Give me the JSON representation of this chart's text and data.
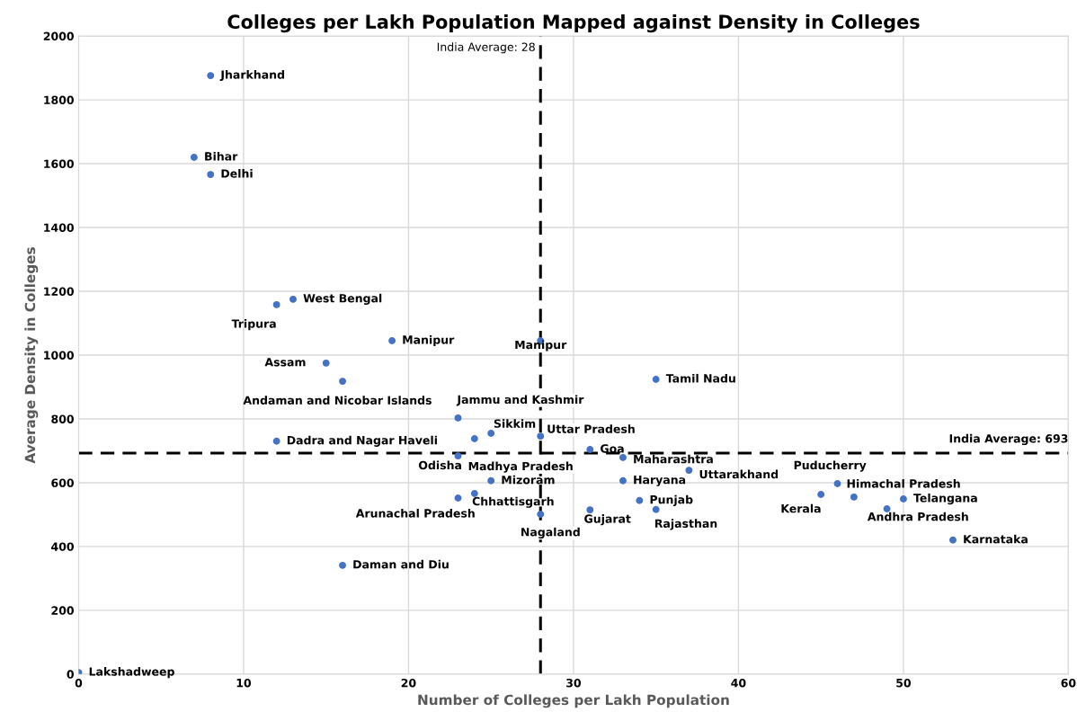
{
  "chart_data": {
    "type": "scatter",
    "title": "Colleges per Lakh Population Mapped against Density in Colleges",
    "xlabel": "Number of Colleges per Lakh Population",
    "ylabel": "Average Density in Colleges",
    "x": [
      8,
      7,
      8,
      12,
      13,
      19,
      28,
      15,
      16,
      23,
      24,
      25,
      12,
      28,
      23,
      25,
      24,
      23,
      28,
      31,
      31,
      33,
      33,
      35,
      34,
      35,
      37,
      45,
      46,
      47,
      50,
      49,
      53,
      16,
      0
    ],
    "series": [
      {
        "color": "#4472c4",
        "values": [
          1876,
          1620,
          1566,
          1158,
          1175,
          1045,
          1045,
          975,
          918,
          803,
          738,
          755,
          730,
          746,
          684,
          606,
          566,
          552,
          501,
          704,
          515,
          679,
          606,
          924,
          544,
          516,
          639,
          563,
          597,
          555,
          549,
          518,
          420,
          341,
          5
        ]
      }
    ],
    "annotations": [
      {
        "text": "Jharkhand",
        "x": 8,
        "y": 1876
      },
      {
        "text": "Bihar",
        "x": 7,
        "y": 1620
      },
      {
        "text": "Delhi",
        "x": 8,
        "y": 1566
      },
      {
        "text": "Tripura",
        "x": 12,
        "y": 1158
      },
      {
        "text": "West Bengal",
        "x": 13,
        "y": 1175
      },
      {
        "text": "Manipur",
        "x": 19,
        "y": 1045
      },
      {
        "text": "Manipur",
        "x": 28,
        "y": 1045
      },
      {
        "text": "Assam",
        "x": 15,
        "y": 975
      },
      {
        "text": "Andaman and Nicobar Islands",
        "x": 16,
        "y": 918
      },
      {
        "text": "Jammu and Kashmir",
        "x": 23,
        "y": 803
      },
      {
        "text": "Odisha",
        "x": 24,
        "y": 738
      },
      {
        "text": "Sikkim",
        "x": 25,
        "y": 755
      },
      {
        "text": "Dadra and Nagar Haveli",
        "x": 12,
        "y": 730
      },
      {
        "text": "Uttar Pradesh",
        "x": 28,
        "y": 746
      },
      {
        "text": "Madhya Pradesh",
        "x": 23,
        "y": 684
      },
      {
        "text": "Mizoram",
        "x": 25,
        "y": 606
      },
      {
        "text": "Chhattisgarh",
        "x": 24,
        "y": 566
      },
      {
        "text": "Arunachal Pradesh",
        "x": 23,
        "y": 552
      },
      {
        "text": "Nagaland",
        "x": 28,
        "y": 501
      },
      {
        "text": "Goa",
        "x": 31,
        "y": 704
      },
      {
        "text": "Gujarat",
        "x": 31,
        "y": 515
      },
      {
        "text": "Maharashtra",
        "x": 33,
        "y": 679
      },
      {
        "text": "Haryana",
        "x": 33,
        "y": 606
      },
      {
        "text": "Tamil Nadu",
        "x": 35,
        "y": 924
      },
      {
        "text": "Punjab",
        "x": 34,
        "y": 544
      },
      {
        "text": "Rajasthan",
        "x": 35,
        "y": 516
      },
      {
        "text": "Uttarakhand",
        "x": 37,
        "y": 639
      },
      {
        "text": "Kerala",
        "x": 45,
        "y": 563
      },
      {
        "text": "Puducherry",
        "x": 46,
        "y": 597
      },
      {
        "text": "Himachal Pradesh",
        "x": 47,
        "y": 555
      },
      {
        "text": "Telangana",
        "x": 50,
        "y": 549
      },
      {
        "text": "Andhra Pradesh",
        "x": 49,
        "y": 518
      },
      {
        "text": "Karnataka",
        "x": 53,
        "y": 420
      },
      {
        "text": "Daman and Diu",
        "x": 16,
        "y": 341
      },
      {
        "text": "Lakshadweep",
        "x": 0,
        "y": 5
      }
    ],
    "ref_lines": [
      {
        "axis": "x",
        "value": 28,
        "label": "India Average: 28",
        "color": "#000000",
        "line_style": "dashed"
      },
      {
        "axis": "y",
        "value": 693,
        "label": "India Average: 693",
        "color": "#000000",
        "line_style": "dashed"
      }
    ],
    "xlim": [
      0,
      60
    ],
    "xticks": [
      0,
      10,
      20,
      30,
      40,
      50,
      60
    ],
    "ylim": [
      0,
      2000
    ],
    "yticks": [
      0,
      200,
      400,
      600,
      800,
      1000,
      1200,
      1400,
      1600,
      1800,
      2000
    ],
    "grid": true,
    "marker": "circle",
    "legend": false
  }
}
